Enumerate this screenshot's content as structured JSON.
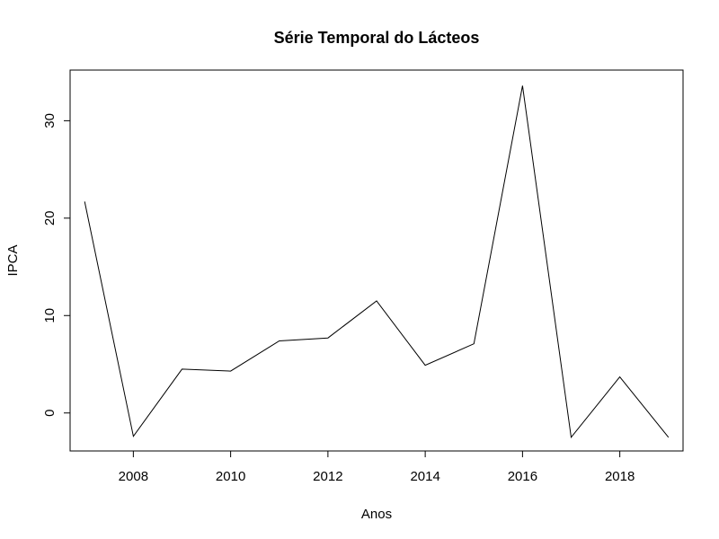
{
  "chart_data": {
    "type": "line",
    "title": "Série Temporal do Lácteos",
    "xlabel": "Anos",
    "ylabel": "IPCA",
    "xlim": [
      2006.7,
      2019.3
    ],
    "ylim": [
      -3.9,
      35.2
    ],
    "x_ticks": [
      2008,
      2010,
      2012,
      2014,
      2016,
      2018
    ],
    "y_ticks": [
      0,
      10,
      20,
      30
    ],
    "grid": false,
    "line_color": "#000000",
    "series": [
      {
        "x": [
          2007,
          2008,
          2009,
          2010,
          2011,
          2012,
          2013,
          2014,
          2015,
          2016,
          2017,
          2018,
          2019
        ],
        "values": [
          21.7,
          -2.4,
          4.5,
          4.3,
          7.4,
          7.7,
          11.5,
          4.9,
          7.1,
          33.6,
          -2.5,
          3.7,
          -2.5
        ]
      }
    ]
  }
}
